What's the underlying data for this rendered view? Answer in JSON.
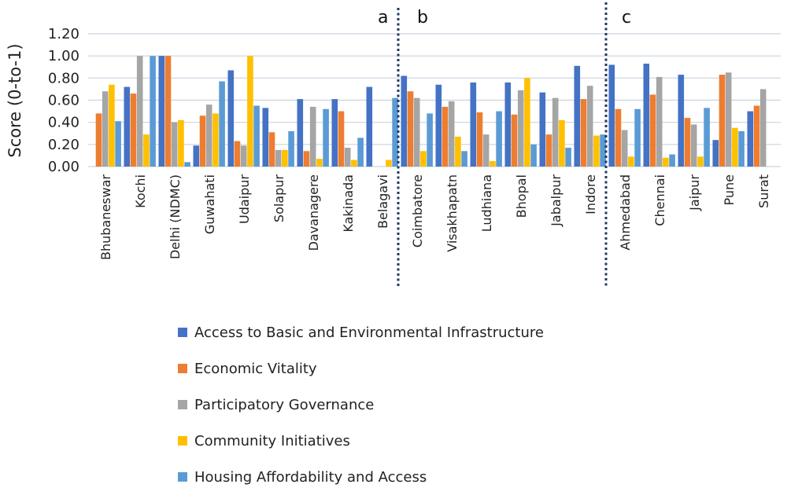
{
  "chart_data": {
    "type": "bar",
    "title": "",
    "xlabel": "",
    "ylabel": "Score (0-to-1)",
    "ylim": [
      0,
      1.2
    ],
    "yticks": [
      "0.00",
      "0.20",
      "0.40",
      "0.60",
      "0.80",
      "1.00",
      "1.20"
    ],
    "grid": true,
    "legend_position": "bottom",
    "categories": [
      "Bhubaneswar",
      "Kochi",
      "Delhi (NDMC)",
      "Guwahati",
      "Udaipur",
      "Solapur",
      "Davanagere",
      "Kakinada",
      "Belagavi",
      "Coimbatore",
      "Visakhapatn",
      "Ludhiana",
      "Bhopal",
      "Jabalpur",
      "Indore",
      "Ahmedabad",
      "Chennai",
      "Jaipur",
      "Pune",
      "Surat"
    ],
    "sections": [
      {
        "label": "a",
        "after_category_index": 8
      },
      {
        "label": "b",
        "after_category_index": 14
      },
      {
        "label": "c",
        "after_category_index": 19
      }
    ],
    "series": [
      {
        "name": "Access to Basic and Environmental Infrastructure",
        "color": "#4472C4",
        "values": [
          0.0,
          0.72,
          1.0,
          0.19,
          0.87,
          0.53,
          0.61,
          0.61,
          0.72,
          0.82,
          0.74,
          0.76,
          0.76,
          0.67,
          0.91,
          0.92,
          0.93,
          0.83,
          0.24,
          0.5
        ]
      },
      {
        "name": "Economic Vitality",
        "color": "#ED7D31",
        "values": [
          0.48,
          0.66,
          1.0,
          0.46,
          0.23,
          0.31,
          0.14,
          0.5,
          0.0,
          0.68,
          0.54,
          0.49,
          0.47,
          0.29,
          0.61,
          0.52,
          0.65,
          0.44,
          0.83,
          0.55
        ]
      },
      {
        "name": "Participatory Governance",
        "color": "#A5A5A5",
        "values": [
          0.68,
          1.0,
          0.4,
          0.56,
          0.19,
          0.15,
          0.54,
          0.17,
          0.0,
          0.62,
          0.59,
          0.29,
          0.69,
          0.62,
          0.73,
          0.33,
          0.81,
          0.38,
          0.85,
          0.7
        ]
      },
      {
        "name": "Community Initiatives",
        "color": "#FFC000",
        "values": [
          0.74,
          0.29,
          0.42,
          0.48,
          1.0,
          0.15,
          0.07,
          0.06,
          0.06,
          0.14,
          0.27,
          0.05,
          0.8,
          0.42,
          0.28,
          0.09,
          0.08,
          0.09,
          0.35,
          0.0
        ]
      },
      {
        "name": "Housing Affordability and Access",
        "color": "#5B9BD5",
        "values": [
          0.41,
          1.0,
          0.04,
          0.77,
          0.55,
          0.32,
          0.52,
          0.26,
          0.62,
          0.48,
          0.14,
          0.5,
          0.2,
          0.17,
          0.29,
          0.52,
          0.11,
          0.53,
          0.32,
          0.0
        ]
      }
    ]
  },
  "divider_color": "#1F3864",
  "gridline_color": "#C9D3DD"
}
